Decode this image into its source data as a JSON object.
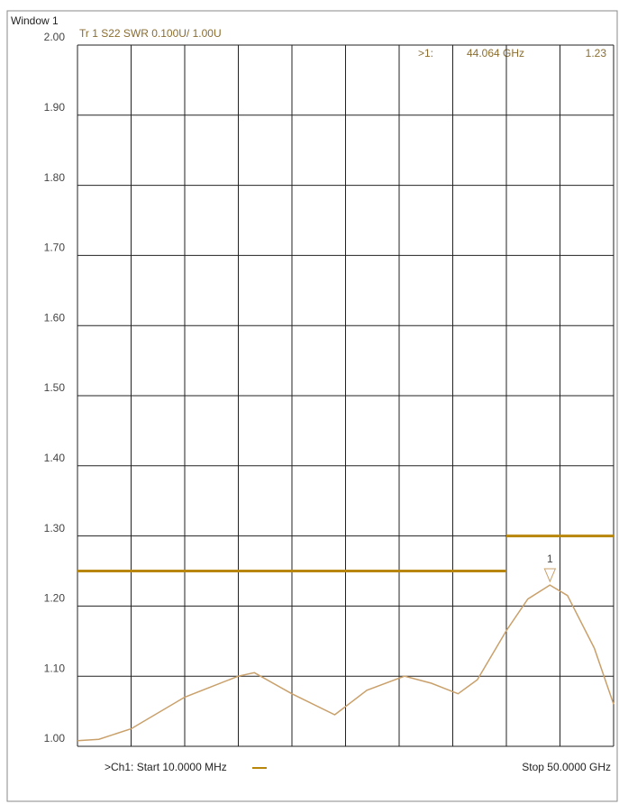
{
  "chart_data": {
    "type": "line",
    "window_label": "Window 1",
    "title": "Tr 1  S22 SWR 0.100U/  1.00U",
    "start_label": ">Ch1: Start  10.0000 MHz",
    "stop_label": "Stop  50.0000 GHz",
    "xlim": [
      0.01,
      50
    ],
    "ylim": [
      1.0,
      2.0
    ],
    "yticks": [
      {
        "value": 2.0,
        "label": "2.00"
      },
      {
        "value": 1.9,
        "label": "1.90"
      },
      {
        "value": 1.8,
        "label": "1.80"
      },
      {
        "value": 1.7,
        "label": "1.70"
      },
      {
        "value": 1.6,
        "label": "1.60"
      },
      {
        "value": 1.5,
        "label": "1.50"
      },
      {
        "value": 1.4,
        "label": "1.40"
      },
      {
        "value": 1.3,
        "label": "1.30"
      },
      {
        "value": 1.2,
        "label": "1.20"
      },
      {
        "value": 1.1,
        "label": "1.10"
      },
      {
        "value": 1.0,
        "label": "1.00"
      }
    ],
    "grid": true,
    "series": [
      {
        "color": "#c9a06a",
        "x": [
          0.01,
          2,
          5,
          10,
          15,
          16.5,
          20,
          24,
          27,
          30.5,
          33,
          35.5,
          37.3,
          40,
          42,
          44.064,
          45.7,
          48.2,
          50
        ],
        "values": [
          1.008,
          1.01,
          1.025,
          1.07,
          1.1,
          1.105,
          1.075,
          1.045,
          1.08,
          1.1,
          1.09,
          1.075,
          1.095,
          1.165,
          1.21,
          1.23,
          1.215,
          1.14,
          1.06
        ]
      }
    ],
    "limit_lines": [
      {
        "color": "#b8860b",
        "x": [
          0.01,
          40
        ],
        "values": [
          1.25,
          1.25
        ]
      },
      {
        "color": "#b8860b",
        "x": [
          40,
          50
        ],
        "values": [
          1.3,
          1.3
        ]
      }
    ],
    "marker": {
      "label": "1",
      "prefix": ">1:",
      "x": {
        "value": 44.064,
        "label": "44.064 GHz"
      },
      "value": 1.23
    }
  }
}
